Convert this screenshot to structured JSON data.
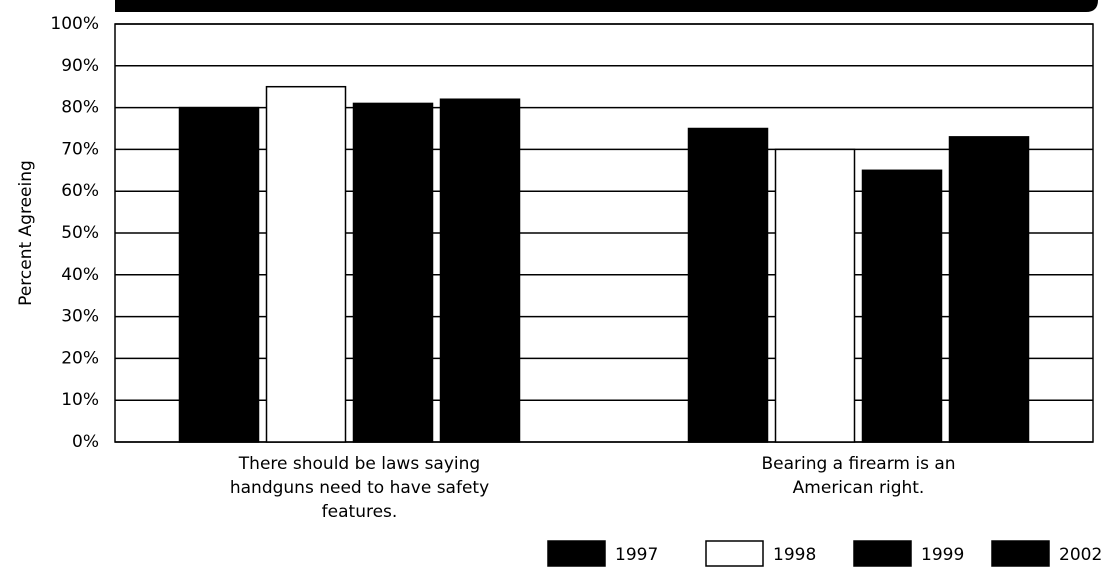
{
  "chart_data": {
    "type": "bar",
    "y_label": "Percent Agreeing",
    "categories": [
      "There should be laws saying handguns need to have safety features.",
      "Bearing a firearm is an American right."
    ],
    "series": [
      {
        "name": "1997",
        "color": "#000000",
        "values": [
          80,
          75
        ]
      },
      {
        "name": "1998",
        "color": "#ffffff",
        "values": [
          85,
          70
        ]
      },
      {
        "name": "1999",
        "color": "#000000",
        "values": [
          81,
          65
        ]
      },
      {
        "name": "2002",
        "color": "#000000",
        "values": [
          82,
          73
        ]
      }
    ],
    "ylim": [
      0,
      100
    ],
    "yticks": [
      {
        "value": 0,
        "label": "0%"
      },
      {
        "value": 10,
        "label": "10%"
      },
      {
        "value": 20,
        "label": "20%"
      },
      {
        "value": 30,
        "label": "30%"
      },
      {
        "value": 40,
        "label": "40%"
      },
      {
        "value": 50,
        "label": "50%"
      },
      {
        "value": 60,
        "label": "60%"
      },
      {
        "value": 70,
        "label": "70%"
      },
      {
        "value": 80,
        "label": "80%"
      },
      {
        "value": 90,
        "label": "90%"
      },
      {
        "value": 100,
        "label": "100%"
      }
    ],
    "grid": true,
    "legend": "bottom-right"
  }
}
